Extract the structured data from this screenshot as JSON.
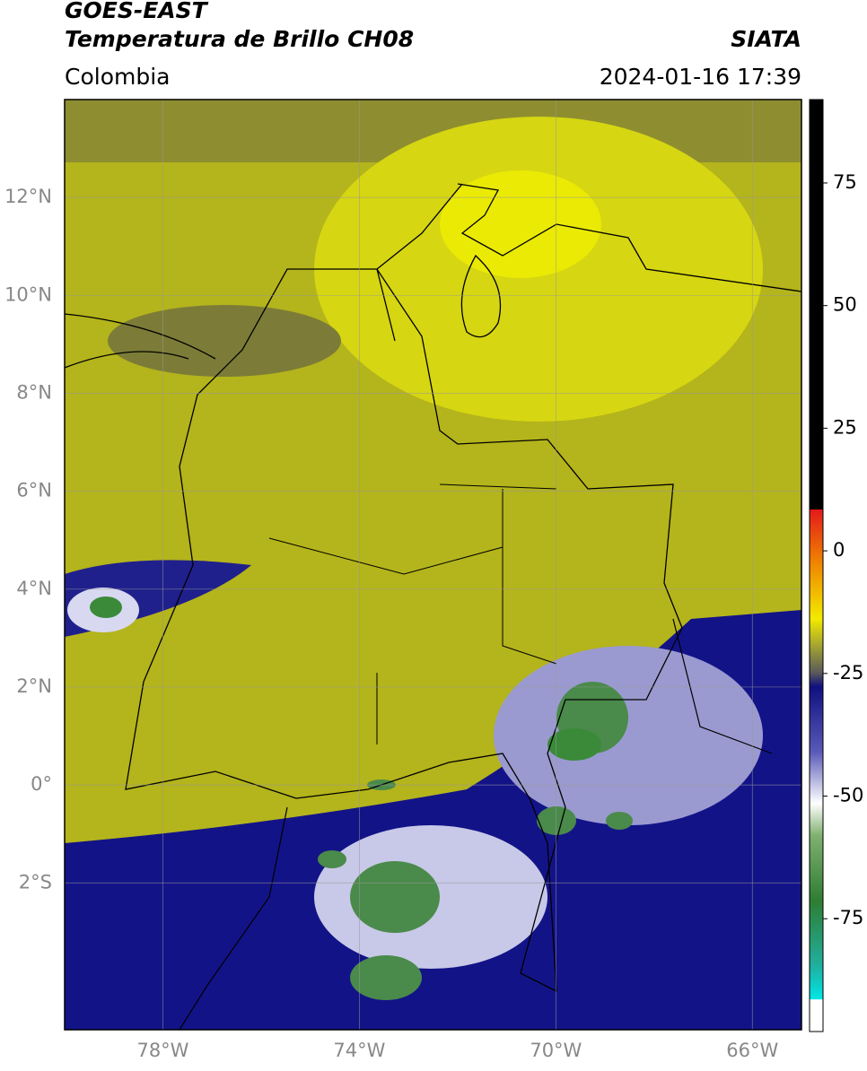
{
  "header": {
    "title_line1": "GOES-EAST",
    "title_line2": "Temperatura de Brillo CH08",
    "region": "Colombia",
    "source": "SIATA",
    "datetime": "2024-01-16 17:39"
  },
  "map": {
    "lonlim": [
      -80,
      -65
    ],
    "latlim": [
      -5,
      14
    ],
    "lonticks": [
      {
        "value": -78,
        "label": "78°W"
      },
      {
        "value": -74,
        "label": "74°W"
      },
      {
        "value": -70,
        "label": "70°W"
      },
      {
        "value": -66,
        "label": "66°W"
      }
    ],
    "latticks": [
      {
        "value": 12,
        "label": "12°N"
      },
      {
        "value": 10,
        "label": "10°N"
      },
      {
        "value": 8,
        "label": "8°N"
      },
      {
        "value": 6,
        "label": "6°N"
      },
      {
        "value": 4,
        "label": "4°N"
      },
      {
        "value": 2,
        "label": "2°N"
      },
      {
        "value": 0,
        "label": "0°"
      },
      {
        "value": -2,
        "label": "2°S"
      }
    ],
    "grid": true
  },
  "colorbar": {
    "lim": [
      -98,
      92
    ],
    "ticks": [
      75,
      50,
      25,
      0,
      -25,
      -50,
      -75
    ]
  }
}
